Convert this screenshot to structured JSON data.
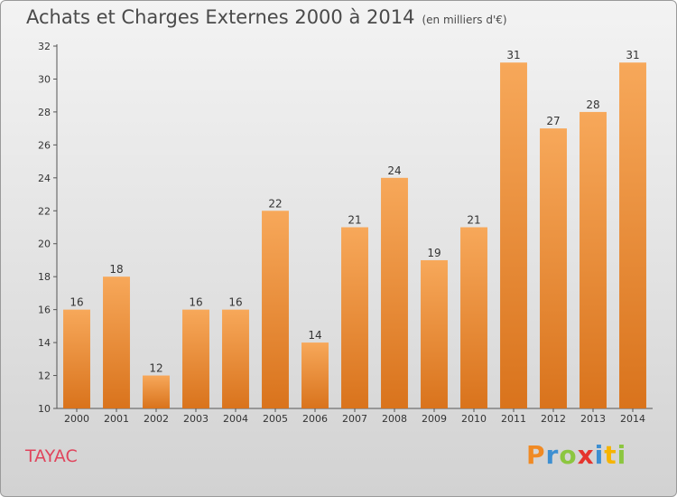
{
  "title": "Achats et Charges Externes 2000 à 2014",
  "subtitle": "(en milliers d'€)",
  "commune": "TAYAC",
  "brand": {
    "letters": [
      "P",
      "r",
      "o",
      "x",
      "i",
      "t",
      "i"
    ],
    "colors": [
      "#f08a24",
      "#3d8fd1",
      "#8cc63f",
      "#e5342d",
      "#3d8fd1",
      "#f6b400",
      "#8cc63f"
    ]
  },
  "colors": {
    "bar_top": "#f7a85a",
    "bar_bottom": "#d9731c",
    "title": "#4a4a4a",
    "commune": "#e0445c"
  },
  "chart_data": {
    "type": "bar",
    "title": "Achats et Charges Externes 2000 à 2014",
    "subtitle": "(en milliers d'€)",
    "categories": [
      "2000",
      "2001",
      "2002",
      "2003",
      "2004",
      "2005",
      "2006",
      "2007",
      "2008",
      "2009",
      "2010",
      "2011",
      "2012",
      "2013",
      "2014"
    ],
    "values": [
      16,
      18,
      12,
      16,
      16,
      22,
      14,
      21,
      24,
      19,
      21,
      31,
      27,
      28,
      31
    ],
    "ylim": [
      10,
      32
    ],
    "yticks": [
      10,
      12,
      14,
      16,
      18,
      20,
      22,
      24,
      26,
      28,
      30,
      32
    ],
    "grid": false,
    "legend": "none"
  }
}
